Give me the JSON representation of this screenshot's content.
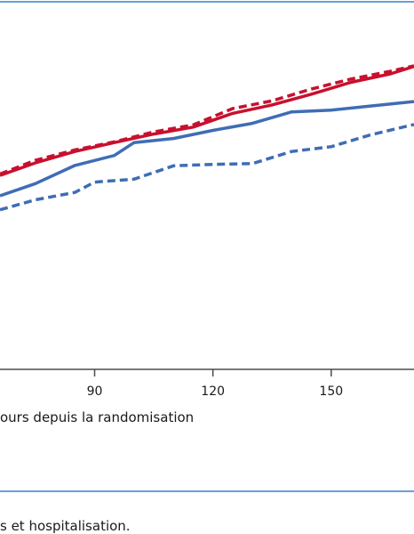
{
  "chart_data": {
    "type": "line",
    "xlabel": "ours depuis la randomisation",
    "xlim": [
      66,
      171
    ],
    "ylim": [
      0,
      100
    ],
    "x_ticks": [
      90,
      120,
      150
    ],
    "grid": false,
    "series": [
      {
        "color": "#c8102e",
        "style": "solid",
        "points": [
          [
            66,
            52.5
          ],
          [
            75,
            55.9
          ],
          [
            85,
            59.0
          ],
          [
            95,
            61.4
          ],
          [
            105,
            63.7
          ],
          [
            115,
            65.6
          ],
          [
            125,
            69.3
          ],
          [
            135,
            71.6
          ],
          [
            145,
            74.5
          ],
          [
            155,
            77.7
          ],
          [
            165,
            80.0
          ],
          [
            171,
            82.0
          ]
        ]
      },
      {
        "color": "#c8102e",
        "style": "dashed",
        "points": [
          [
            66,
            52.9
          ],
          [
            75,
            56.6
          ],
          [
            85,
            59.4
          ],
          [
            95,
            61.6
          ],
          [
            105,
            64.3
          ],
          [
            115,
            66.2
          ],
          [
            125,
            70.6
          ],
          [
            135,
            72.7
          ],
          [
            145,
            75.9
          ],
          [
            155,
            78.6
          ],
          [
            165,
            80.7
          ],
          [
            171,
            82.2
          ]
        ]
      },
      {
        "color": "#3f6db4",
        "style": "solid",
        "points": [
          [
            66,
            47.0
          ],
          [
            75,
            50.3
          ],
          [
            85,
            55.2
          ],
          [
            95,
            57.9
          ],
          [
            100,
            61.4
          ],
          [
            110,
            62.5
          ],
          [
            120,
            64.7
          ],
          [
            130,
            66.6
          ],
          [
            140,
            69.7
          ],
          [
            150,
            70.2
          ],
          [
            160,
            71.3
          ],
          [
            171,
            72.5
          ]
        ]
      },
      {
        "color": "#3f6db4",
        "style": "dashed",
        "points": [
          [
            66,
            43.2
          ],
          [
            75,
            45.9
          ],
          [
            85,
            47.9
          ],
          [
            90,
            50.7
          ],
          [
            100,
            51.5
          ],
          [
            110,
            55.1
          ],
          [
            120,
            55.5
          ],
          [
            130,
            55.7
          ],
          [
            140,
            59.0
          ],
          [
            150,
            60.3
          ],
          [
            160,
            63.5
          ],
          [
            171,
            66.3
          ]
        ]
      }
    ]
  },
  "caption": "s et hospitalisation."
}
